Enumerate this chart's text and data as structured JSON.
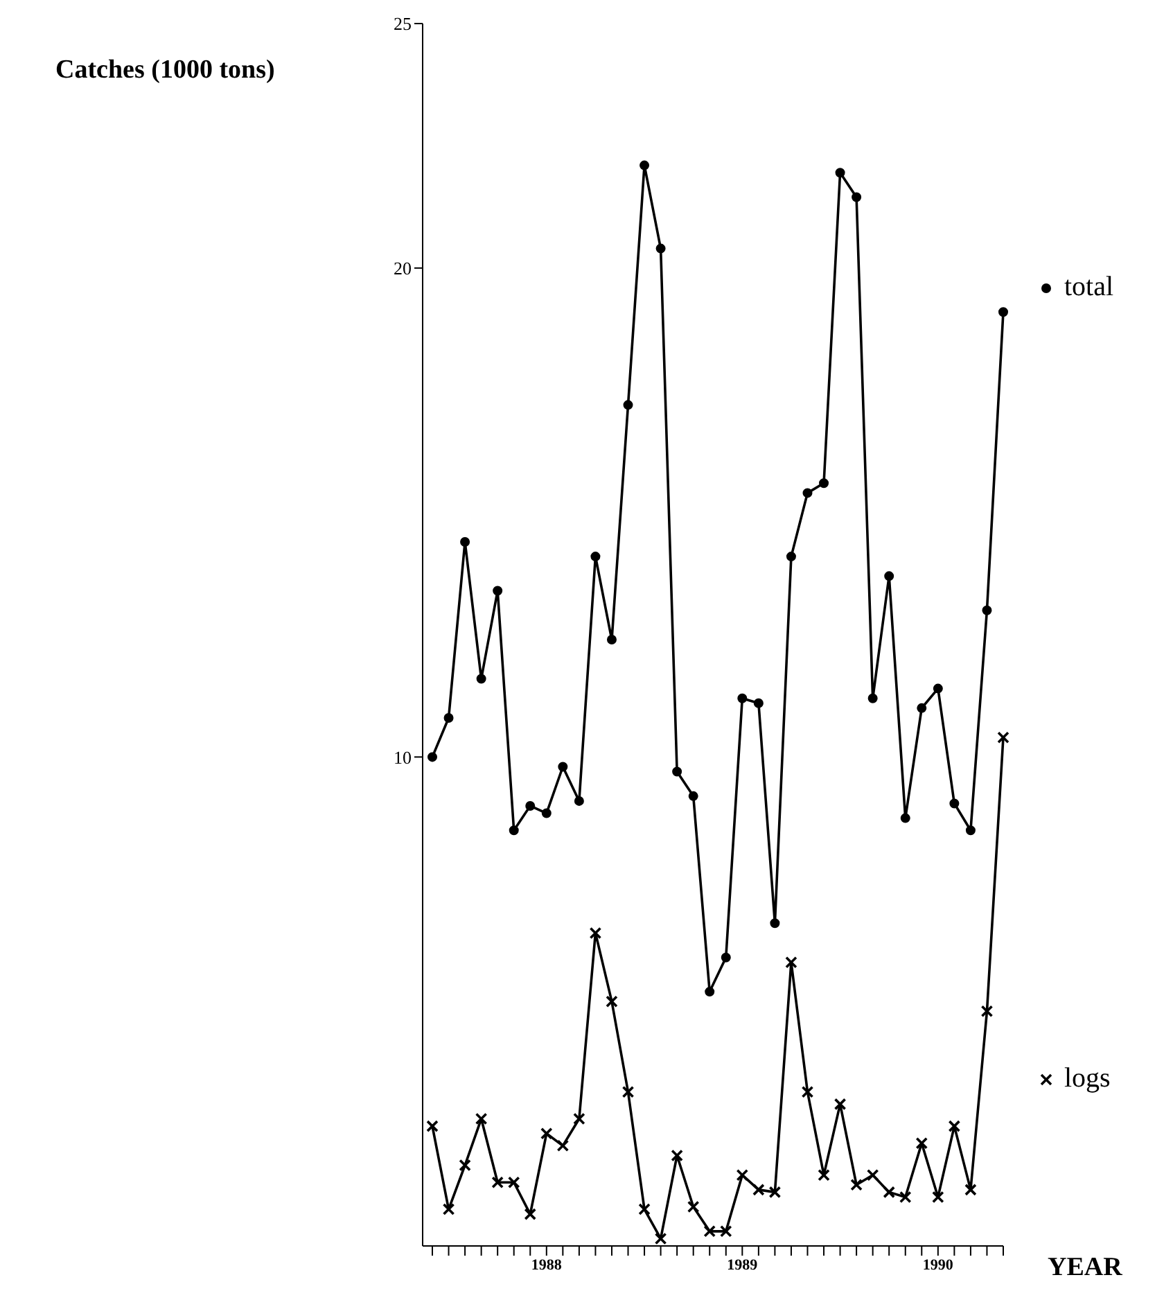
{
  "chart_data": {
    "type": "line",
    "ylabel": "Catches (1000 tons)",
    "xlabel": "YEAR",
    "categories": [
      null,
      null,
      null,
      null,
      null,
      null,
      null,
      "1988",
      null,
      null,
      null,
      null,
      null,
      null,
      null,
      null,
      null,
      null,
      null,
      "1989",
      null,
      null,
      null,
      null,
      null,
      null,
      null,
      null,
      null,
      null,
      null,
      "1990",
      null,
      null,
      null,
      null
    ],
    "series": [
      {
        "name": "total",
        "color": "#000000",
        "marker": "circle",
        "values": [
          10.0,
          10.8,
          14.4,
          11.6,
          13.4,
          8.5,
          9.0,
          8.85,
          9.8,
          9.1,
          14.1,
          12.4,
          17.2,
          22.1,
          20.4,
          9.7,
          9.2,
          5.2,
          5.9,
          11.2,
          11.1,
          6.6,
          14.1,
          15.4,
          15.6,
          21.95,
          21.45,
          11.2,
          13.7,
          8.75,
          11.0,
          11.4,
          9.05,
          8.5,
          13.0,
          19.1
        ]
      },
      {
        "name": "logs",
        "color": "#000000",
        "marker": "cross",
        "values": [
          2.45,
          0.75,
          1.65,
          2.6,
          1.3,
          1.3,
          0.65,
          2.3,
          2.05,
          2.6,
          6.4,
          5.0,
          3.15,
          0.75,
          0.15,
          1.85,
          0.8,
          0.3,
          0.3,
          1.45,
          1.15,
          1.1,
          5.8,
          3.15,
          1.45,
          2.9,
          1.25,
          1.45,
          1.1,
          1.0,
          2.1,
          1.0,
          2.45,
          1.15,
          4.8,
          10.4
        ]
      }
    ],
    "ylim": [
      0,
      25
    ],
    "yticks": [
      10,
      20,
      25
    ],
    "grid": false,
    "legend": "right",
    "line_style": "solid"
  }
}
